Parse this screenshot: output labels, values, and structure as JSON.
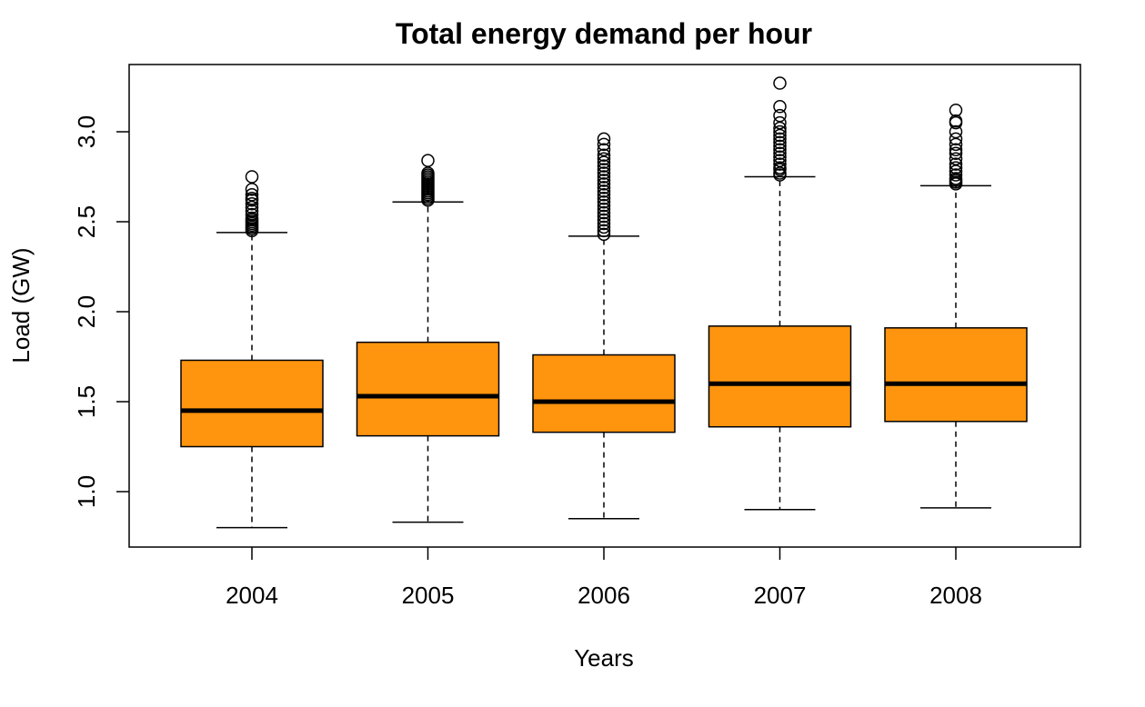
{
  "chart_data": {
    "type": "boxplot",
    "title": "Total energy demand per hour",
    "xlabel": "Years",
    "ylabel": "Load (GW)",
    "categories": [
      "2004",
      "2005",
      "2006",
      "2007",
      "2008"
    ],
    "y_ticks": [
      "1.0",
      "1.5",
      "2.0",
      "2.5",
      "3.0"
    ],
    "ylim": [
      0.7,
      3.35
    ],
    "grid": false,
    "legend": "none",
    "box_color": "#ff950e",
    "boxes": [
      {
        "label": "2004",
        "whisker_low": 0.8,
        "q1": 1.25,
        "median": 1.45,
        "q3": 1.73,
        "whisker_high": 2.44,
        "outliers": [
          2.45,
          2.46,
          2.47,
          2.48,
          2.49,
          2.5,
          2.51,
          2.52,
          2.54,
          2.56,
          2.58,
          2.6,
          2.62,
          2.63,
          2.65,
          2.68,
          2.75
        ]
      },
      {
        "label": "2005",
        "whisker_low": 0.83,
        "q1": 1.31,
        "median": 1.53,
        "q3": 1.83,
        "whisker_high": 2.61,
        "outliers": [
          2.62,
          2.63,
          2.64,
          2.65,
          2.66,
          2.67,
          2.68,
          2.69,
          2.7,
          2.71,
          2.72,
          2.73,
          2.74,
          2.75,
          2.76,
          2.77,
          2.84
        ]
      },
      {
        "label": "2006",
        "whisker_low": 0.85,
        "q1": 1.33,
        "median": 1.5,
        "q3": 1.76,
        "whisker_high": 2.42,
        "outliers": [
          2.43,
          2.45,
          2.47,
          2.49,
          2.51,
          2.53,
          2.55,
          2.57,
          2.59,
          2.61,
          2.63,
          2.65,
          2.67,
          2.69,
          2.71,
          2.73,
          2.75,
          2.77,
          2.79,
          2.81,
          2.83,
          2.85,
          2.87,
          2.9,
          2.93,
          2.96
        ]
      },
      {
        "label": "2007",
        "whisker_low": 0.9,
        "q1": 1.36,
        "median": 1.6,
        "q3": 1.92,
        "whisker_high": 2.75,
        "outliers": [
          2.76,
          2.77,
          2.79,
          2.8,
          2.82,
          2.84,
          2.86,
          2.88,
          2.9,
          2.92,
          2.94,
          2.96,
          2.98,
          3.0,
          3.02,
          3.05,
          3.09,
          3.14,
          3.27
        ]
      },
      {
        "label": "2008",
        "whisker_low": 0.91,
        "q1": 1.39,
        "median": 1.6,
        "q3": 1.91,
        "whisker_high": 2.7,
        "outliers": [
          2.71,
          2.72,
          2.73,
          2.74,
          2.76,
          2.78,
          2.8,
          2.82,
          2.85,
          2.88,
          2.9,
          2.93,
          2.96,
          3.0,
          3.05,
          3.06,
          3.12
        ]
      }
    ]
  }
}
